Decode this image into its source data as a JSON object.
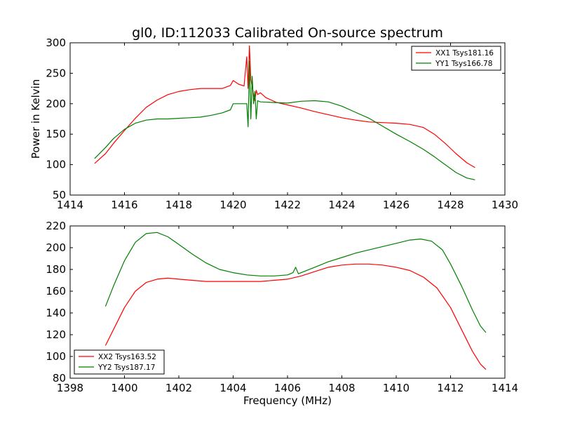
{
  "chart_data": [
    {
      "type": "line",
      "title": "gl0, ID:112033 Calibrated On-source spectrum",
      "xlabel": "",
      "ylabel": "Power in Kelvin",
      "xlim": [
        1414,
        1430
      ],
      "ylim": [
        50,
        300
      ],
      "xticks": [
        1414,
        1416,
        1418,
        1420,
        1422,
        1424,
        1426,
        1428,
        1430
      ],
      "yticks": [
        50,
        100,
        150,
        200,
        250,
        300
      ],
      "legend": "top-right",
      "series": [
        {
          "name": "XX1 Tsys181.16",
          "color": "#ff0000",
          "x": [
            1414.9,
            1415.3,
            1415.6,
            1416.0,
            1416.4,
            1416.8,
            1417.2,
            1417.6,
            1418.0,
            1418.4,
            1418.8,
            1419.2,
            1419.6,
            1419.9,
            1420.0,
            1420.2,
            1420.4,
            1420.5,
            1420.55,
            1420.6,
            1420.65,
            1420.7,
            1420.75,
            1420.8,
            1420.85,
            1420.9,
            1421.0,
            1421.2,
            1421.6,
            1422.0,
            1422.5,
            1423.0,
            1423.5,
            1424.0,
            1424.5,
            1425.0,
            1425.5,
            1426.0,
            1426.5,
            1427.0,
            1427.4,
            1427.8,
            1428.2,
            1428.6,
            1428.9
          ],
          "y": [
            102,
            118,
            135,
            156,
            176,
            194,
            206,
            215,
            220,
            223,
            225,
            225,
            225,
            230,
            238,
            232,
            229,
            277,
            225,
            295,
            240,
            228,
            215,
            205,
            222,
            215,
            218,
            210,
            202,
            198,
            193,
            187,
            182,
            177,
            173,
            170,
            169,
            168,
            166,
            161,
            150,
            135,
            118,
            103,
            95
          ]
        },
        {
          "name": "YY1 Tsys166.78",
          "color": "#008000",
          "x": [
            1414.9,
            1415.3,
            1415.6,
            1416.0,
            1416.4,
            1416.8,
            1417.2,
            1417.6,
            1418.0,
            1418.4,
            1418.8,
            1419.2,
            1419.6,
            1419.9,
            1420.0,
            1420.3,
            1420.5,
            1420.55,
            1420.6,
            1420.65,
            1420.7,
            1420.75,
            1420.8,
            1420.85,
            1420.9,
            1421.0,
            1421.5,
            1422.0,
            1422.5,
            1423.0,
            1423.5,
            1424.0,
            1424.5,
            1425.0,
            1425.5,
            1426.0,
            1426.5,
            1427.0,
            1427.4,
            1427.8,
            1428.2,
            1428.6,
            1428.9
          ],
          "y": [
            110,
            128,
            143,
            158,
            168,
            173,
            175,
            175,
            176,
            177,
            178,
            181,
            185,
            190,
            200,
            200,
            200,
            162,
            270,
            175,
            245,
            200,
            220,
            175,
            205,
            203,
            202,
            201,
            204,
            205,
            203,
            196,
            186,
            176,
            163,
            150,
            138,
            125,
            113,
            100,
            87,
            78,
            75
          ]
        }
      ]
    },
    {
      "type": "line",
      "title": "",
      "xlabel": "Frequency (MHz)",
      "ylabel": "",
      "xlim": [
        1398,
        1414
      ],
      "ylim": [
        80,
        220
      ],
      "xticks": [
        1398,
        1400,
        1402,
        1404,
        1406,
        1408,
        1410,
        1412,
        1414
      ],
      "yticks": [
        80,
        100,
        120,
        140,
        160,
        180,
        200,
        220
      ],
      "legend": "bottom-left",
      "series": [
        {
          "name": "XX2 Tsys163.52",
          "color": "#ff0000",
          "x": [
            1399.3,
            1399.6,
            1400.0,
            1400.4,
            1400.8,
            1401.2,
            1401.6,
            1402.0,
            1402.5,
            1403.0,
            1403.5,
            1404.0,
            1404.5,
            1405.0,
            1405.5,
            1406.0,
            1406.5,
            1407.0,
            1407.5,
            1408.0,
            1408.5,
            1409.0,
            1409.5,
            1410.0,
            1410.5,
            1411.0,
            1411.5,
            1412.0,
            1412.4,
            1412.8,
            1413.1,
            1413.3
          ],
          "y": [
            110,
            125,
            145,
            160,
            168,
            171,
            172,
            171,
            170,
            169,
            169,
            169,
            169,
            169,
            170,
            171,
            174,
            178,
            182,
            184,
            185,
            185,
            184,
            182,
            179,
            173,
            163,
            145,
            125,
            105,
            93,
            88
          ]
        },
        {
          "name": "YY2 Tsys187.17",
          "color": "#008000",
          "x": [
            1399.3,
            1399.6,
            1400.0,
            1400.4,
            1400.8,
            1401.2,
            1401.6,
            1402.0,
            1402.5,
            1403.0,
            1403.5,
            1404.0,
            1404.5,
            1405.0,
            1405.5,
            1406.0,
            1406.2,
            1406.3,
            1406.4,
            1406.6,
            1407.0,
            1407.5,
            1408.0,
            1408.5,
            1409.0,
            1409.5,
            1410.0,
            1410.5,
            1410.9,
            1411.3,
            1411.7,
            1412.0,
            1412.4,
            1412.8,
            1413.1,
            1413.3
          ],
          "y": [
            146,
            165,
            188,
            205,
            213,
            214,
            210,
            203,
            194,
            186,
            180,
            177,
            175,
            174,
            174,
            175,
            177,
            182,
            176,
            178,
            182,
            187,
            191,
            195,
            198,
            201,
            204,
            207,
            208,
            206,
            198,
            185,
            165,
            143,
            128,
            122
          ]
        }
      ]
    }
  ]
}
